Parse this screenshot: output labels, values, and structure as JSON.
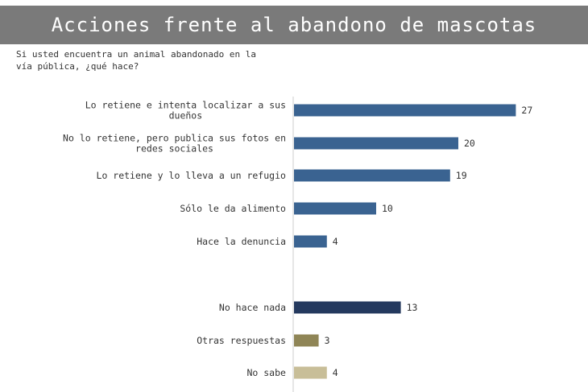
{
  "title": "Acciones frente al abandono de mascotas",
  "question": "Si usted encuentra un animal abandonado en la vía pública, ¿qué hace?",
  "chart_data": {
    "type": "bar",
    "orientation": "horizontal",
    "categories": [
      [
        "Lo retiene e intenta localizar a sus",
        "dueños"
      ],
      [
        "No lo retiene, pero publica sus fotos en",
        "redes sociales"
      ],
      [
        "Lo retiene y lo lleva a un refugio"
      ],
      [
        "Sólo le da alimento"
      ],
      [
        "Hace la denuncia"
      ],
      [
        "No hace nada"
      ],
      [
        "Otras respuestas"
      ],
      [
        "No sabe"
      ]
    ],
    "values": [
      27,
      20,
      19,
      10,
      4,
      13,
      3,
      4
    ],
    "value_labels": [
      "27",
      "20",
      "19",
      "10",
      "4",
      "13",
      "3",
      "4"
    ],
    "colors": [
      "#3a6391",
      "#3a6391",
      "#3a6391",
      "#3a6391",
      "#3a6391",
      "#24395e",
      "#8f8556",
      "#c8be98"
    ],
    "axis_color": "#cccccc"
  }
}
